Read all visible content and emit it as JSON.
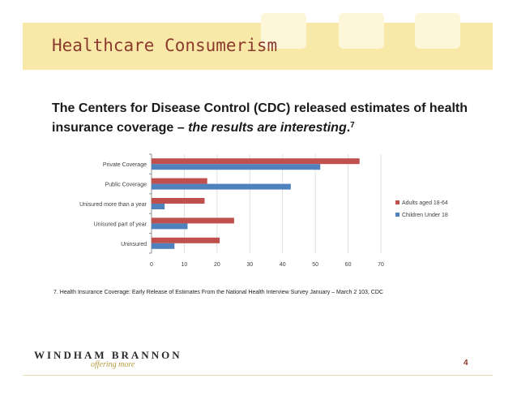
{
  "slide": {
    "title": "Healthcare Consumerism",
    "subtitle_plain": "The Centers for Disease Control (CDC) released estimates of health insurance coverage – ",
    "subtitle_italic": "the results are interesting",
    "subtitle_end": ".",
    "subtitle_sup": "7",
    "footnote": "7.  Health Insurance Coverage: Early Release of Estimates From the National Health Interview Survey January – March 2 103, CDC",
    "brand": "WINDHAM BRANNON",
    "tagline": "offering more",
    "page_number": "4"
  },
  "colors": {
    "adults": "#c0504d",
    "children": "#4f81bd",
    "title": "#8b3a2e",
    "header_band": "#f8e9a8"
  },
  "chart_data": {
    "type": "bar",
    "orientation": "horizontal",
    "categories": [
      "Private Coverage",
      "Public Coverage",
      "Unisured more than a year",
      "Unisured part of year",
      "Uninsured"
    ],
    "series": [
      {
        "name": "Adults aged 18-64",
        "values": [
          63.5,
          17,
          16.2,
          25.2,
          20.8
        ]
      },
      {
        "name": "Children Under 18",
        "values": [
          51.5,
          42.5,
          4,
          11,
          7
        ]
      }
    ],
    "xlim": [
      0,
      70
    ],
    "xticks": [
      0,
      10,
      20,
      30,
      40,
      50,
      60,
      70
    ],
    "legend_position": "right"
  }
}
